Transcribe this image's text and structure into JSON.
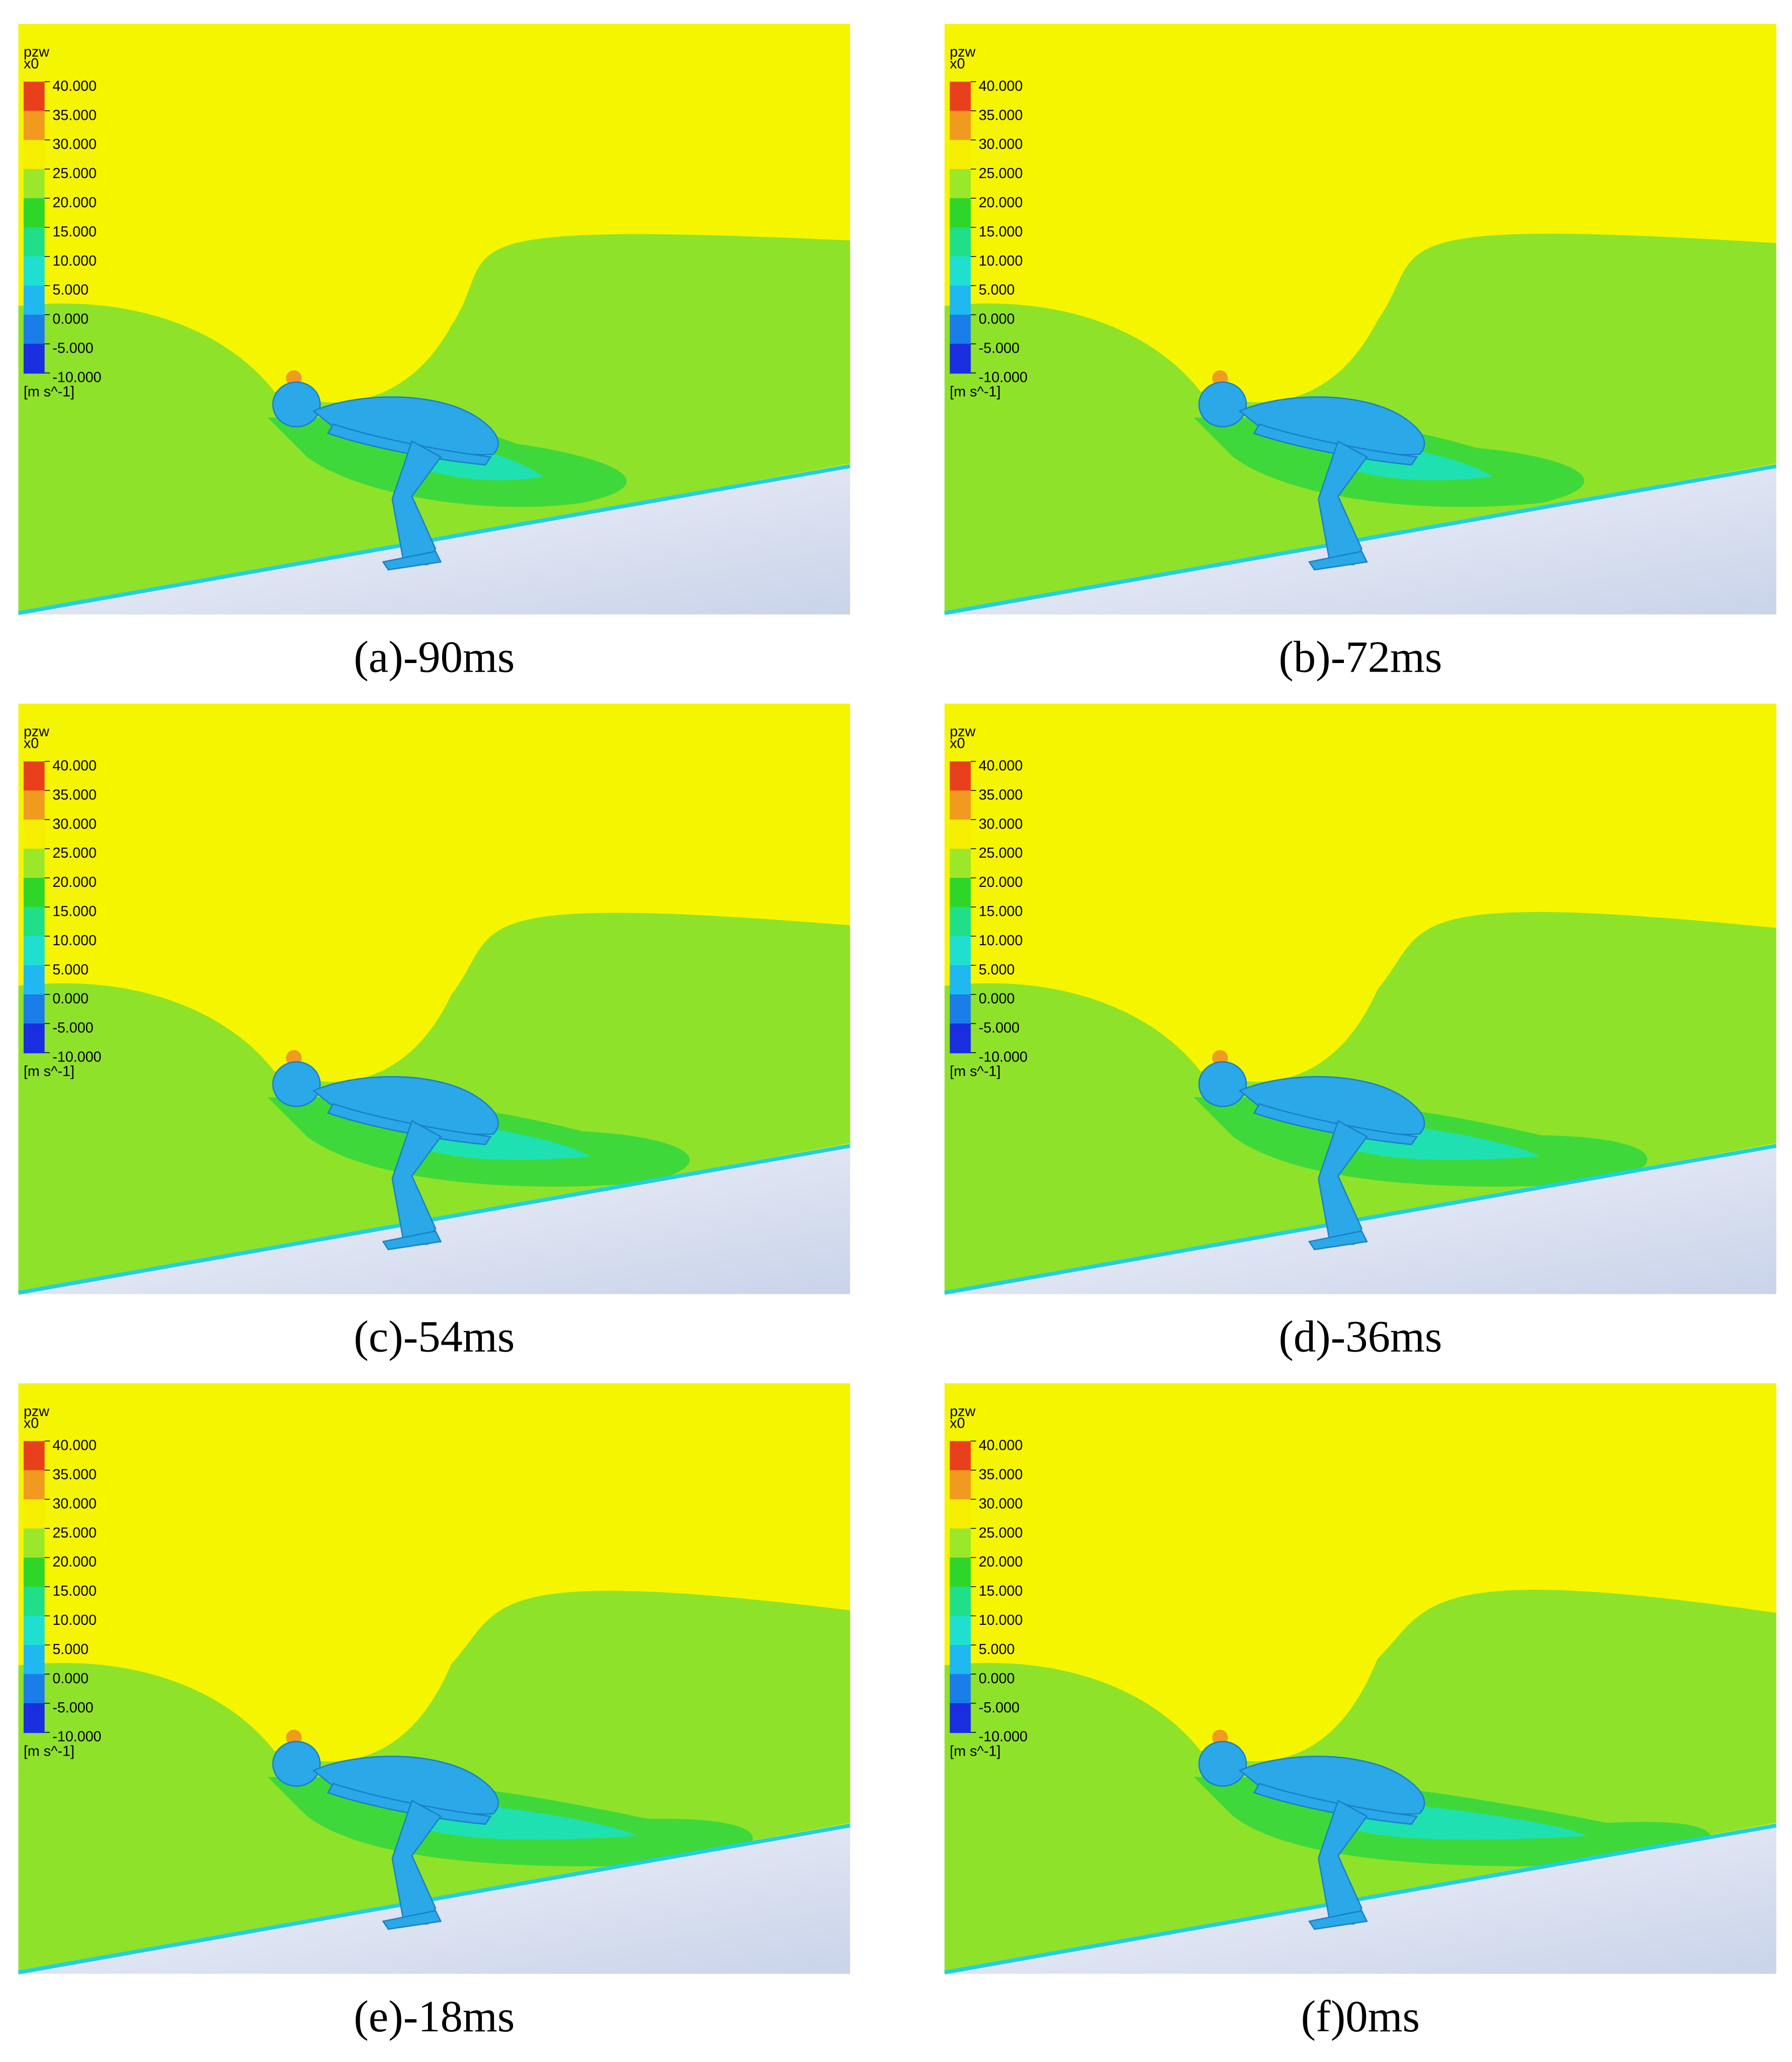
{
  "legend": {
    "variable": "pzw",
    "location": "x0",
    "ticks": [
      {
        "value": 40,
        "label": "40.000"
      },
      {
        "value": 35,
        "label": "35.000"
      },
      {
        "value": 30,
        "label": "30.000"
      },
      {
        "value": 25,
        "label": "25.000"
      },
      {
        "value": 20,
        "label": "20.000"
      },
      {
        "value": 15,
        "label": "15.000"
      },
      {
        "value": 10,
        "label": "10.000"
      },
      {
        "value": 5,
        "label": "5.000"
      },
      {
        "value": 0,
        "label": "0.000"
      },
      {
        "value": -5,
        "label": "-5.000"
      },
      {
        "value": -10,
        "label": "-10.000"
      }
    ],
    "unit": "[m s^-1]"
  },
  "panels": [
    {
      "caption": "(a)-90ms"
    },
    {
      "caption": "(b)-72ms"
    },
    {
      "caption": "(c)-54ms"
    },
    {
      "caption": "(d)-36ms"
    },
    {
      "caption": "(e)-18ms"
    },
    {
      "caption": "(f)0ms"
    }
  ]
}
